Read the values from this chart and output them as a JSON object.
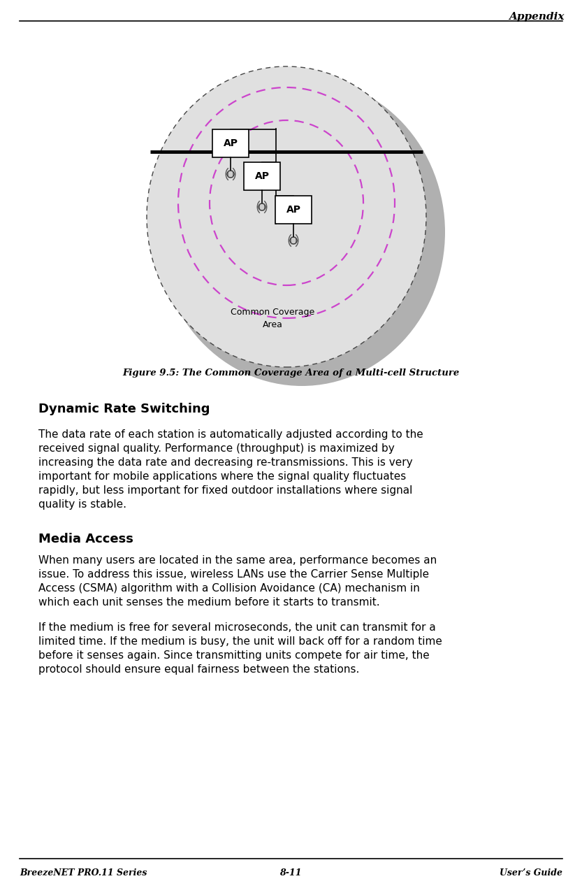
{
  "page_width": 8.33,
  "page_height": 12.7,
  "bg_color": "#ffffff",
  "header_text": "Appendix",
  "footer_left": "BreezeNET PRO.11 Series",
  "footer_center": "8-11",
  "footer_right": "User’s Guide",
  "figure_caption": "Figure 9.5: The Common Coverage Area of a Multi-cell Structure",
  "section1_title": "Dynamic Rate Switching",
  "section1_body": "The data rate of each station is automatically adjusted according to the\nreceived signal quality. Performance (throughput) is maximized by\nincreasing the data rate and decreasing re-transmissions. This is very\nimportant for mobile applications where the signal quality fluctuates\nrapidly, but less important for fixed outdoor installations where signal\nquality is stable.",
  "section2_title": "Media Access",
  "section2_body1": "When many users are located in the same area, performance becomes an\nissue. To address this issue, wireless LANs use the Carrier Sense Multiple\nAccess (CSMA) algorithm with a Collision Avoidance (CA) mechanism in\nwhich each unit senses the medium before it starts to transmit.",
  "section2_body2": "If the medium is free for several microseconds, the unit can transmit for a\nlimited time. If the medium is busy, the unit will back off for a random time\nbefore it senses again. Since transmitting units compete for air time, the\nprotocol should ensure equal fairness between the stations.",
  "dashed_circle_color": "#cc44cc",
  "shadow_color": "#aaaaaa",
  "coverage_label": "Common Coverage\nArea"
}
